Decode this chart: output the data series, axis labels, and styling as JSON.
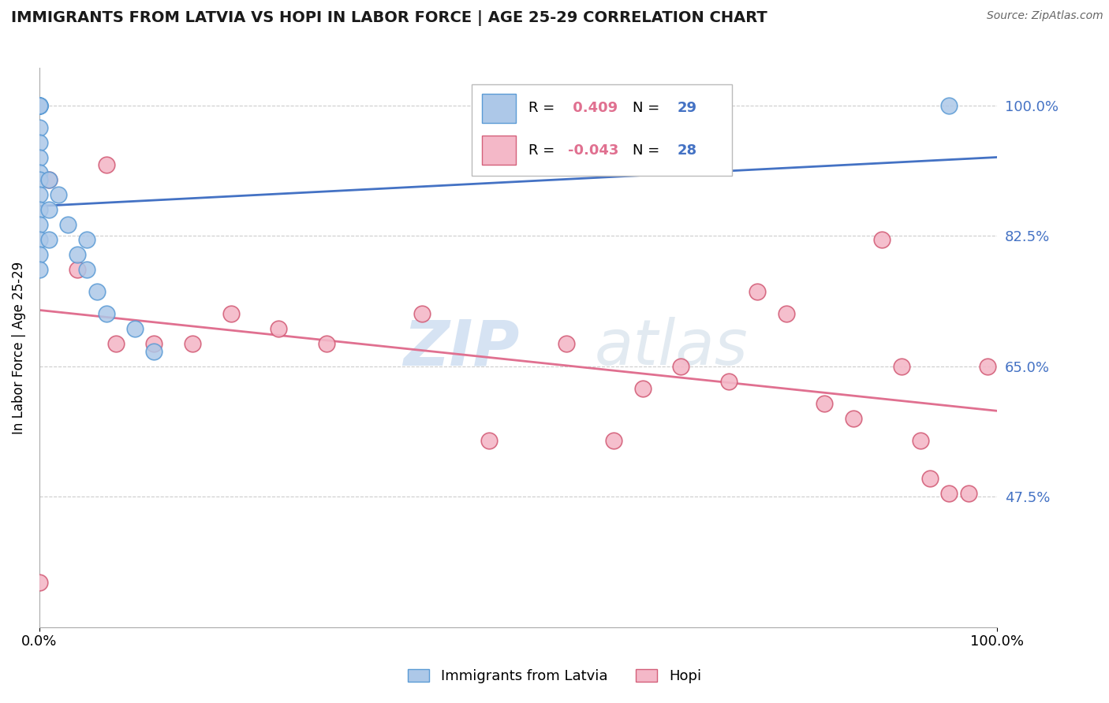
{
  "title": "IMMIGRANTS FROM LATVIA VS HOPI IN LABOR FORCE | AGE 25-29 CORRELATION CHART",
  "source": "Source: ZipAtlas.com",
  "ylabel": "In Labor Force | Age 25-29",
  "xlim": [
    0,
    1
  ],
  "ylim": [
    0.3,
    1.05
  ],
  "yticks": [
    0.475,
    0.65,
    0.825,
    1.0
  ],
  "ytick_labels": [
    "47.5%",
    "65.0%",
    "82.5%",
    "100.0%"
  ],
  "xtick_labels": [
    "0.0%",
    "100.0%"
  ],
  "xticks": [
    0,
    1
  ],
  "r_latvia": 0.409,
  "n_latvia": 29,
  "r_hopi": -0.043,
  "n_hopi": 28,
  "latvia_color": "#adc8e8",
  "latvia_edge": "#5b9bd5",
  "hopi_color": "#f4b8c8",
  "hopi_edge": "#d4607a",
  "trendline_latvia_color": "#4472c4",
  "trendline_hopi_color": "#e07090",
  "legend_r_color": "#e07090",
  "legend_n_color": "#4472c4",
  "watermark_color": "#d0dff0",
  "latvia_x": [
    0.0,
    0.0,
    0.0,
    0.0,
    0.0,
    0.0,
    0.0,
    0.0,
    0.0,
    0.0,
    0.0,
    0.0,
    0.0,
    0.0,
    0.0,
    0.0,
    0.01,
    0.01,
    0.01,
    0.02,
    0.03,
    0.04,
    0.05,
    0.05,
    0.06,
    0.07,
    0.1,
    0.12,
    0.95
  ],
  "latvia_y": [
    1.0,
    1.0,
    1.0,
    1.0,
    1.0,
    0.97,
    0.95,
    0.93,
    0.91,
    0.9,
    0.88,
    0.86,
    0.84,
    0.82,
    0.8,
    0.78,
    0.9,
    0.86,
    0.82,
    0.88,
    0.84,
    0.8,
    0.82,
    0.78,
    0.75,
    0.72,
    0.7,
    0.67,
    1.0
  ],
  "hopi_x": [
    0.0,
    0.01,
    0.04,
    0.07,
    0.08,
    0.12,
    0.16,
    0.2,
    0.25,
    0.3,
    0.4,
    0.47,
    0.55,
    0.6,
    0.63,
    0.67,
    0.72,
    0.75,
    0.78,
    0.82,
    0.85,
    0.88,
    0.9,
    0.92,
    0.93,
    0.95,
    0.97,
    0.99
  ],
  "hopi_y": [
    0.36,
    0.9,
    0.78,
    0.92,
    0.68,
    0.68,
    0.68,
    0.72,
    0.7,
    0.68,
    0.72,
    0.55,
    0.68,
    0.55,
    0.62,
    0.65,
    0.63,
    0.75,
    0.72,
    0.6,
    0.58,
    0.82,
    0.65,
    0.55,
    0.5,
    0.48,
    0.48,
    0.65
  ]
}
